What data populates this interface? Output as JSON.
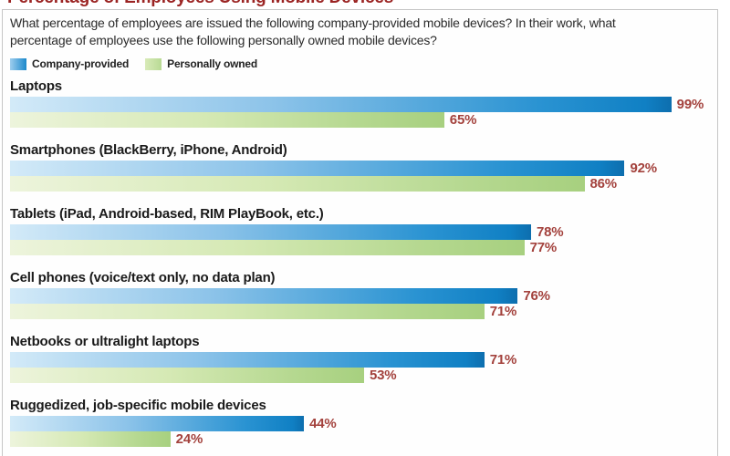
{
  "title": "Percentage of Employees Using Mobile Devices",
  "subtitle_line1": "What percentage of employees are issued the following company-provided mobile devices? In their work, what",
  "subtitle_line2": "percentage of employees use the following personally owned mobile devices?",
  "legend": {
    "company_label": "Company-provided",
    "personal_label": "Personally owned"
  },
  "colors": {
    "title_red": "#9b2423",
    "value_red": "#a3413c",
    "bar_blue_dark": "#1080c4",
    "bar_blue_light": "#d3eaf8",
    "bar_green_dark": "#a7d07f",
    "bar_green_light": "#edf4dc",
    "panel_border": "#c6c6c6"
  },
  "sections": [
    {
      "label": "Laptops",
      "company_pct": 99,
      "personal_pct": 65,
      "company_label": "99%",
      "personal_label": "65%"
    },
    {
      "label": "Smartphones (BlackBerry, iPhone, Android)",
      "company_pct": 92,
      "personal_pct": 86,
      "company_label": "92%",
      "personal_label": "86%"
    },
    {
      "label": "Tablets (iPad, Android-based, RIM PlayBook, etc.)",
      "company_pct": 78,
      "personal_pct": 77,
      "company_label": "78%",
      "personal_label": "77%"
    },
    {
      "label": "Cell phones (voice/text only, no data plan)",
      "company_pct": 76,
      "personal_pct": 71,
      "company_label": "76%",
      "personal_label": "71%"
    },
    {
      "label": "Netbooks or ultralight laptops",
      "company_pct": 71,
      "personal_pct": 53,
      "company_label": "71%",
      "personal_label": "53%"
    },
    {
      "label": "Ruggedized, job-specific mobile devices",
      "company_pct": 44,
      "personal_pct": 24,
      "company_label": "44%",
      "personal_label": "24%"
    }
  ],
  "chart_data": {
    "type": "bar",
    "orientation": "horizontal",
    "title": "Percentage of Employees Using Mobile Devices",
    "subtitle": "What percentage of employees are issued the following company-provided mobile devices? In their work, what percentage of employees use the following personally owned mobile devices?",
    "categories": [
      "Laptops",
      "Smartphones (BlackBerry, iPhone, Android)",
      "Tablets (iPad, Android-based, RIM PlayBook, etc.)",
      "Cell phones (voice/text only, no data plan)",
      "Netbooks or ultralight laptops",
      "Ruggedized, job-specific mobile devices"
    ],
    "series": [
      {
        "name": "Company-provided",
        "color": "#1080c4",
        "values": [
          99,
          92,
          78,
          76,
          71,
          44
        ]
      },
      {
        "name": "Personally owned",
        "color": "#a7d07f",
        "values": [
          65,
          86,
          77,
          71,
          53,
          24
        ]
      }
    ],
    "value_format": "percent",
    "xlim": [
      0,
      100
    ],
    "grid": false,
    "legend_position": "top-left",
    "data_labels": true
  }
}
